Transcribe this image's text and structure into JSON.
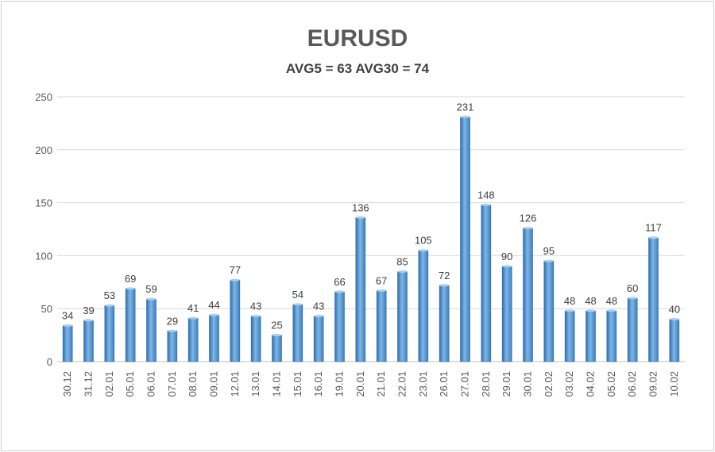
{
  "chart_data": {
    "type": "bar",
    "title": "EURUSD",
    "subtitle": "AVG5 = 63 AVG30 = 74",
    "xlabel": "",
    "ylabel": "",
    "ylim": [
      0,
      250
    ],
    "yticks": [
      0,
      50,
      100,
      150,
      200,
      250
    ],
    "grid": true,
    "legend": "none",
    "categories": [
      "30.12",
      "31.12",
      "02.01",
      "05.01",
      "06.01",
      "07.01",
      "08.01",
      "09.01",
      "12.01",
      "13.01",
      "14.01",
      "15.01",
      "16.01",
      "19.01",
      "20.01",
      "21.01",
      "22.01",
      "23.01",
      "26.01",
      "27.01",
      "28.01",
      "29.01",
      "30.01",
      "02.02",
      "03.02",
      "04.02",
      "05.02",
      "06.02",
      "09.02",
      "10.02"
    ],
    "values": [
      34,
      39,
      53,
      69,
      59,
      29,
      41,
      44,
      77,
      43,
      25,
      54,
      43,
      66,
      136,
      67,
      85,
      105,
      72,
      231,
      148,
      90,
      126,
      95,
      48,
      48,
      48,
      60,
      117,
      40
    ],
    "bar_color": "#5b9bd5"
  }
}
